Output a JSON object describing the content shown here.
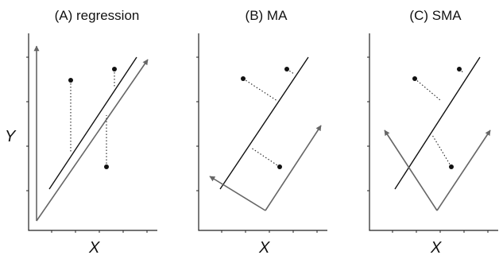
{
  "panels": [
    {
      "id": "A",
      "title": "(A) regression",
      "xlabel": "X"
    },
    {
      "id": "B",
      "title": "(B) MA",
      "xlabel": "X"
    },
    {
      "id": "C",
      "title": "(C) SMA",
      "xlabel": "X"
    }
  ],
  "ylabel": "Y",
  "colors": {
    "fit_line": "#111111",
    "axis_arrow": "#666666",
    "point": "#111111"
  }
}
